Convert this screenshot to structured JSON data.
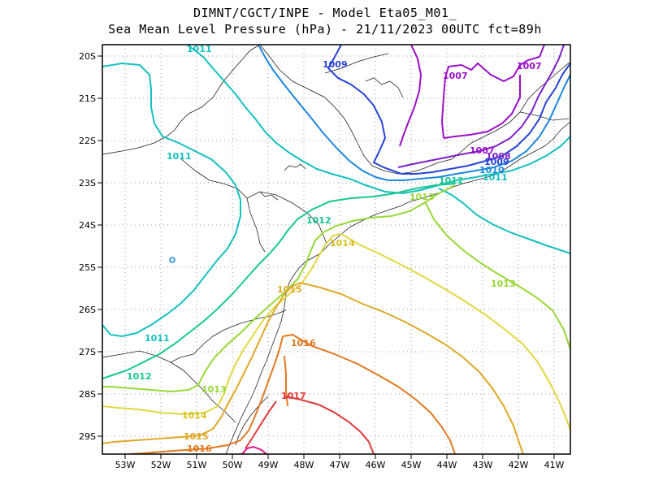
{
  "header": {
    "line1": "DIMNT/CGCT/INPE -  Model Eta05_M01_",
    "line2": "Sea Mean Level Pressure (hPa) - 21/11/2023 00UTC fct=89h"
  },
  "axes": {
    "lat_labels": [
      "20S",
      "21S",
      "22S",
      "23S",
      "24S",
      "25S",
      "26S",
      "27S",
      "28S",
      "29S"
    ],
    "lon_labels": [
      "53W",
      "52W",
      "51W",
      "50W",
      "49W",
      "48W",
      "47W",
      "46W",
      "45W",
      "44W",
      "43W",
      "42W",
      "41W"
    ]
  },
  "contours": [
    {
      "level": "1007",
      "color": "#9b10c8"
    },
    {
      "level": "1008",
      "color": "#7d1fc8"
    },
    {
      "level": "1009",
      "color": "#2843d8"
    },
    {
      "level": "1010",
      "color": "#1c87e0"
    },
    {
      "level": "1011",
      "color": "#16c0c0"
    },
    {
      "level": "1012",
      "color": "#16c890"
    },
    {
      "level": "1013",
      "color": "#98d838"
    },
    {
      "level": "1014",
      "color": "#e0d840"
    },
    {
      "level": "1015",
      "color": "#e0a828"
    },
    {
      "level": "1016",
      "color": "#e07820"
    },
    {
      "level": "1017",
      "color": "#e03838"
    }
  ],
  "labels": {
    "l1007a": "1007",
    "l1007b": "1007",
    "l1007c": "1007",
    "l1008": "1008",
    "l1009a": "1009",
    "l1009b": "1009",
    "l1010": "1010",
    "l1011a": "1011",
    "l1011b": "1011",
    "l1011c": "1011",
    "l1011d": "1011",
    "l1012a": "1012",
    "l1012b": "1012",
    "l1012c": "1012",
    "l1013a": "1013",
    "l1013b": "1013",
    "l1013c": "1013",
    "l1014a": "1014",
    "l1014b": "1014",
    "l1015a": "1015",
    "l1015b": "1015",
    "l1016a": "1016",
    "l1016b": "1016",
    "l1017": "1017"
  }
}
